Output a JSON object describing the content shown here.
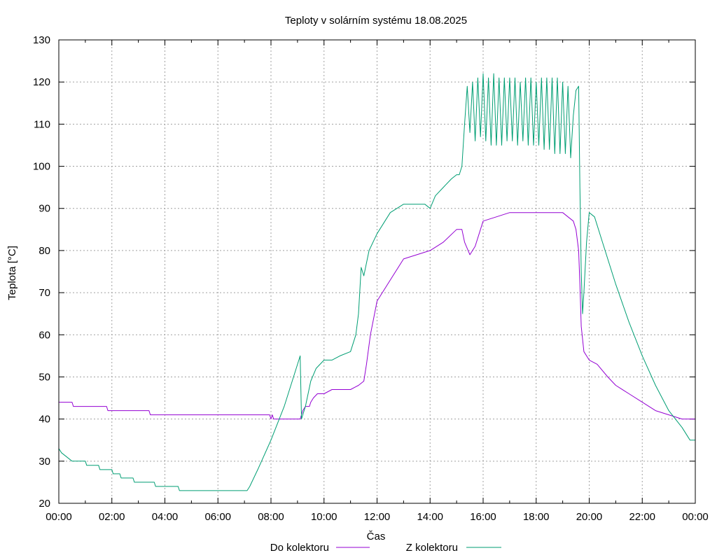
{
  "chart_data": {
    "type": "line",
    "title": "Teploty v solárním systému 18.08.2025",
    "xlabel": "Čas",
    "ylabel": "Teplota [°C]",
    "xlim": [
      0,
      24
    ],
    "ylim": [
      20,
      130
    ],
    "grid": true,
    "legend_position": "bottom",
    "x_tick_labels": [
      "00:00",
      "02:00",
      "04:00",
      "06:00",
      "08:00",
      "10:00",
      "12:00",
      "14:00",
      "16:00",
      "18:00",
      "20:00",
      "22:00",
      "00:00"
    ],
    "y_tick_labels": [
      "20",
      "30",
      "40",
      "50",
      "60",
      "70",
      "80",
      "90",
      "100",
      "110",
      "120",
      "130"
    ],
    "series": [
      {
        "name": "Do kolektoru",
        "color": "#9400d3",
        "points": [
          [
            0.0,
            44
          ],
          [
            0.5,
            44
          ],
          [
            0.55,
            43
          ],
          [
            1.8,
            43
          ],
          [
            1.85,
            42
          ],
          [
            3.4,
            42
          ],
          [
            3.45,
            41
          ],
          [
            5.5,
            41
          ],
          [
            7.95,
            41
          ],
          [
            8.0,
            40
          ],
          [
            8.05,
            41
          ],
          [
            8.1,
            40
          ],
          [
            9.1,
            40
          ],
          [
            9.2,
            42
          ],
          [
            9.3,
            43
          ],
          [
            9.45,
            43
          ],
          [
            9.5,
            44
          ],
          [
            9.6,
            45
          ],
          [
            9.75,
            46
          ],
          [
            10.0,
            46
          ],
          [
            10.3,
            47
          ],
          [
            11.0,
            47
          ],
          [
            11.3,
            48
          ],
          [
            11.5,
            49
          ],
          [
            11.6,
            53
          ],
          [
            11.75,
            60
          ],
          [
            12.0,
            68
          ],
          [
            12.5,
            73
          ],
          [
            13.0,
            78
          ],
          [
            13.5,
            79
          ],
          [
            14.0,
            80
          ],
          [
            14.5,
            82
          ],
          [
            15.0,
            85
          ],
          [
            15.2,
            85
          ],
          [
            15.3,
            82
          ],
          [
            15.5,
            79
          ],
          [
            15.7,
            81
          ],
          [
            16.0,
            87
          ],
          [
            16.5,
            88
          ],
          [
            17.0,
            89
          ],
          [
            18.0,
            89
          ],
          [
            19.0,
            89
          ],
          [
            19.2,
            88
          ],
          [
            19.4,
            87
          ],
          [
            19.5,
            85
          ],
          [
            19.6,
            80
          ],
          [
            19.65,
            72
          ],
          [
            19.7,
            62
          ],
          [
            19.8,
            56
          ],
          [
            20.0,
            54
          ],
          [
            20.3,
            53
          ],
          [
            20.7,
            50
          ],
          [
            21.0,
            48
          ],
          [
            21.5,
            46
          ],
          [
            22.0,
            44
          ],
          [
            22.5,
            42
          ],
          [
            23.0,
            41
          ],
          [
            23.5,
            40
          ],
          [
            24.0,
            40
          ]
        ]
      },
      {
        "name": "Z kolektoru",
        "color": "#009e73",
        "points": [
          [
            0.0,
            33
          ],
          [
            0.1,
            32
          ],
          [
            0.3,
            31
          ],
          [
            0.5,
            30
          ],
          [
            1.0,
            30
          ],
          [
            1.05,
            29
          ],
          [
            1.5,
            29
          ],
          [
            1.55,
            28
          ],
          [
            2.0,
            28
          ],
          [
            2.05,
            27
          ],
          [
            2.3,
            27
          ],
          [
            2.35,
            26
          ],
          [
            2.8,
            26
          ],
          [
            2.85,
            25
          ],
          [
            3.6,
            25
          ],
          [
            3.65,
            24
          ],
          [
            4.5,
            24
          ],
          [
            4.55,
            23
          ],
          [
            7.1,
            23
          ],
          [
            7.2,
            24
          ],
          [
            7.5,
            28
          ],
          [
            8.0,
            35
          ],
          [
            8.5,
            43
          ],
          [
            8.8,
            49
          ],
          [
            9.1,
            55
          ],
          [
            9.15,
            40
          ],
          [
            9.3,
            43
          ],
          [
            9.5,
            49
          ],
          [
            9.7,
            52
          ],
          [
            10.0,
            54
          ],
          [
            10.3,
            54
          ],
          [
            10.6,
            55
          ],
          [
            11.0,
            56
          ],
          [
            11.2,
            60
          ],
          [
            11.3,
            65
          ],
          [
            11.4,
            76
          ],
          [
            11.5,
            74
          ],
          [
            11.7,
            80
          ],
          [
            12.0,
            84
          ],
          [
            12.5,
            89
          ],
          [
            13.0,
            91
          ],
          [
            13.5,
            91
          ],
          [
            13.8,
            91
          ],
          [
            14.0,
            90
          ],
          [
            14.2,
            93
          ],
          [
            14.5,
            95
          ],
          [
            14.8,
            97
          ],
          [
            15.0,
            98
          ],
          [
            15.1,
            98
          ],
          [
            15.2,
            100
          ],
          [
            15.3,
            110
          ],
          [
            15.4,
            119
          ],
          [
            15.5,
            108
          ],
          [
            15.6,
            120
          ],
          [
            15.7,
            106
          ],
          [
            15.8,
            121
          ],
          [
            15.9,
            107
          ],
          [
            16.0,
            122
          ],
          [
            16.1,
            106
          ],
          [
            16.2,
            121
          ],
          [
            16.3,
            105
          ],
          [
            16.4,
            122
          ],
          [
            16.5,
            105
          ],
          [
            16.6,
            121
          ],
          [
            16.7,
            105
          ],
          [
            16.8,
            121
          ],
          [
            16.9,
            106
          ],
          [
            17.0,
            121
          ],
          [
            17.1,
            106
          ],
          [
            17.2,
            121
          ],
          [
            17.3,
            105
          ],
          [
            17.4,
            120
          ],
          [
            17.5,
            106
          ],
          [
            17.6,
            121
          ],
          [
            17.7,
            105
          ],
          [
            17.8,
            121
          ],
          [
            17.9,
            105
          ],
          [
            18.0,
            120
          ],
          [
            18.1,
            105
          ],
          [
            18.2,
            121
          ],
          [
            18.3,
            104
          ],
          [
            18.4,
            121
          ],
          [
            18.5,
            104
          ],
          [
            18.6,
            121
          ],
          [
            18.7,
            103
          ],
          [
            18.8,
            121
          ],
          [
            18.9,
            103
          ],
          [
            19.0,
            120
          ],
          [
            19.1,
            103
          ],
          [
            19.2,
            119
          ],
          [
            19.3,
            102
          ],
          [
            19.4,
            112
          ],
          [
            19.5,
            118
          ],
          [
            19.6,
            119
          ],
          [
            19.65,
            95
          ],
          [
            19.7,
            75
          ],
          [
            19.75,
            65
          ],
          [
            19.8,
            70
          ],
          [
            19.9,
            82
          ],
          [
            20.0,
            89
          ],
          [
            20.2,
            88
          ],
          [
            20.5,
            82
          ],
          [
            21.0,
            72
          ],
          [
            21.5,
            63
          ],
          [
            22.0,
            55
          ],
          [
            22.5,
            48
          ],
          [
            23.0,
            42
          ],
          [
            23.5,
            38
          ],
          [
            23.8,
            35
          ],
          [
            24.0,
            35
          ]
        ]
      }
    ]
  }
}
